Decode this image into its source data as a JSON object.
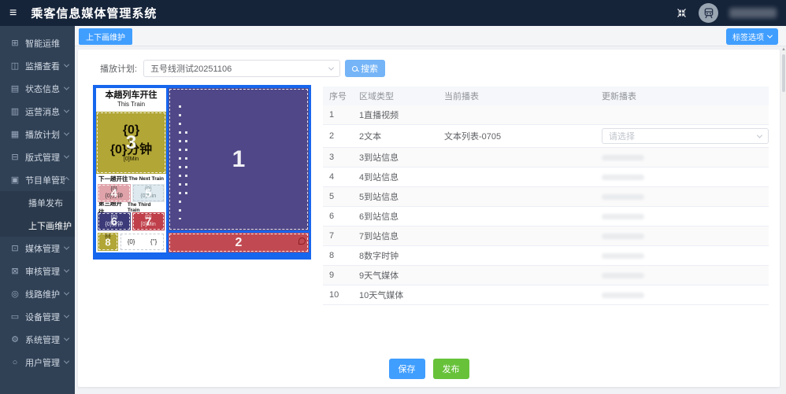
{
  "app": {
    "title": "乘客信息媒体管理系统"
  },
  "tabbar": {
    "active_tab": "上下画维护",
    "tag_options": "标签选项"
  },
  "sidebar": {
    "items": [
      {
        "label": "智能运维",
        "icon": "ops-icon"
      },
      {
        "label": "监播查看",
        "icon": "monitor-icon",
        "chevron": "down"
      },
      {
        "label": "状态信息",
        "icon": "status-icon",
        "chevron": "down"
      },
      {
        "label": "运营消息",
        "icon": "message-icon",
        "chevron": "down"
      },
      {
        "label": "播放计划",
        "icon": "schedule-icon",
        "chevron": "down"
      },
      {
        "label": "版式管理",
        "icon": "layout-icon",
        "chevron": "down"
      },
      {
        "label": "节目单管理",
        "icon": "playlist-icon",
        "chevron": "up",
        "children": [
          {
            "label": "播单发布"
          },
          {
            "label": "上下画维护",
            "active": true
          }
        ]
      },
      {
        "label": "媒体管理",
        "icon": "media-icon",
        "chevron": "down"
      },
      {
        "label": "审核管理",
        "icon": "audit-icon",
        "chevron": "down"
      },
      {
        "label": "线路维护",
        "icon": "line-icon",
        "chevron": "down"
      },
      {
        "label": "设备管理",
        "icon": "device-icon",
        "chevron": "down"
      },
      {
        "label": "系统管理",
        "icon": "system-icon",
        "chevron": "down"
      },
      {
        "label": "用户管理",
        "icon": "user-icon",
        "chevron": "down"
      }
    ]
  },
  "toolbar": {
    "plan_label": "播放计划:",
    "plan_value": "五号线测试20251106",
    "search_label": "搜索"
  },
  "preview": {
    "region1": {
      "num": "1"
    },
    "region2": {
      "num": "2"
    },
    "this_train": {
      "cn": "本趟列车开往",
      "en": "This Train"
    },
    "region3": {
      "top": "{0}",
      "top_sub": "(0)",
      "num": "3",
      "bottom": "{0}分钟",
      "bottom_sub": "[0]Min"
    },
    "next_train": {
      "cn": "下一趟开往",
      "en": "The Next Train"
    },
    "region4": {
      "top": "{0}",
      "num": "4",
      "bottom": "{0}分钟"
    },
    "region5": {
      "top": "(0)",
      "num": "5",
      "bottom": "(0)Min"
    },
    "third_train": {
      "cn": "第三趟开往",
      "en": "The Third Train"
    },
    "region6": {
      "top": "(0)",
      "num": "6",
      "bottom": "{0}分钟"
    },
    "region7": {
      "top": "(0)",
      "num": "7",
      "bottom": "[0]Min"
    },
    "region8": {
      "num": "8",
      "text": "{0}"
    },
    "region9": {
      "text": "{0}"
    },
    "region10": {
      "text": "{''}"
    }
  },
  "table": {
    "headers": [
      "序号",
      "区域类型",
      "当前播表",
      "更新播表"
    ],
    "rows": [
      {
        "no": "1",
        "type": "1直播视频",
        "current": "",
        "update": ""
      },
      {
        "no": "2",
        "type": "2文本",
        "current": "文本列表-0705",
        "update_select_placeholder": "请选择"
      },
      {
        "no": "3",
        "type": "3到站信息",
        "current": "",
        "update": ""
      },
      {
        "no": "4",
        "type": "4到站信息",
        "current": "",
        "update": ""
      },
      {
        "no": "5",
        "type": "5到站信息",
        "current": "",
        "update": ""
      },
      {
        "no": "6",
        "type": "6到站信息",
        "current": "",
        "update": ""
      },
      {
        "no": "7",
        "type": "7到站信息",
        "current": "",
        "update": ""
      },
      {
        "no": "8",
        "type": "8数字时钟",
        "current": "",
        "update": ""
      },
      {
        "no": "9",
        "type": "9天气媒体",
        "current": "",
        "update": ""
      },
      {
        "no": "10",
        "type": "10天气媒体",
        "current": "",
        "update": ""
      }
    ]
  },
  "footer": {
    "save": "保存",
    "publish": "发布"
  },
  "colors": {
    "accent": "#409eff",
    "success": "#67c23a",
    "header_bg": "#16243a",
    "sidebar_bg": "#304156",
    "preview_frame": "#1766ee",
    "region1": "#4f4787",
    "region2": "#c14a52",
    "region3": "#b1a636",
    "region4": "#e0a3aa",
    "region5": "#dde9ee",
    "region6": "#3c3a78",
    "region7": "#bf3f4a"
  }
}
